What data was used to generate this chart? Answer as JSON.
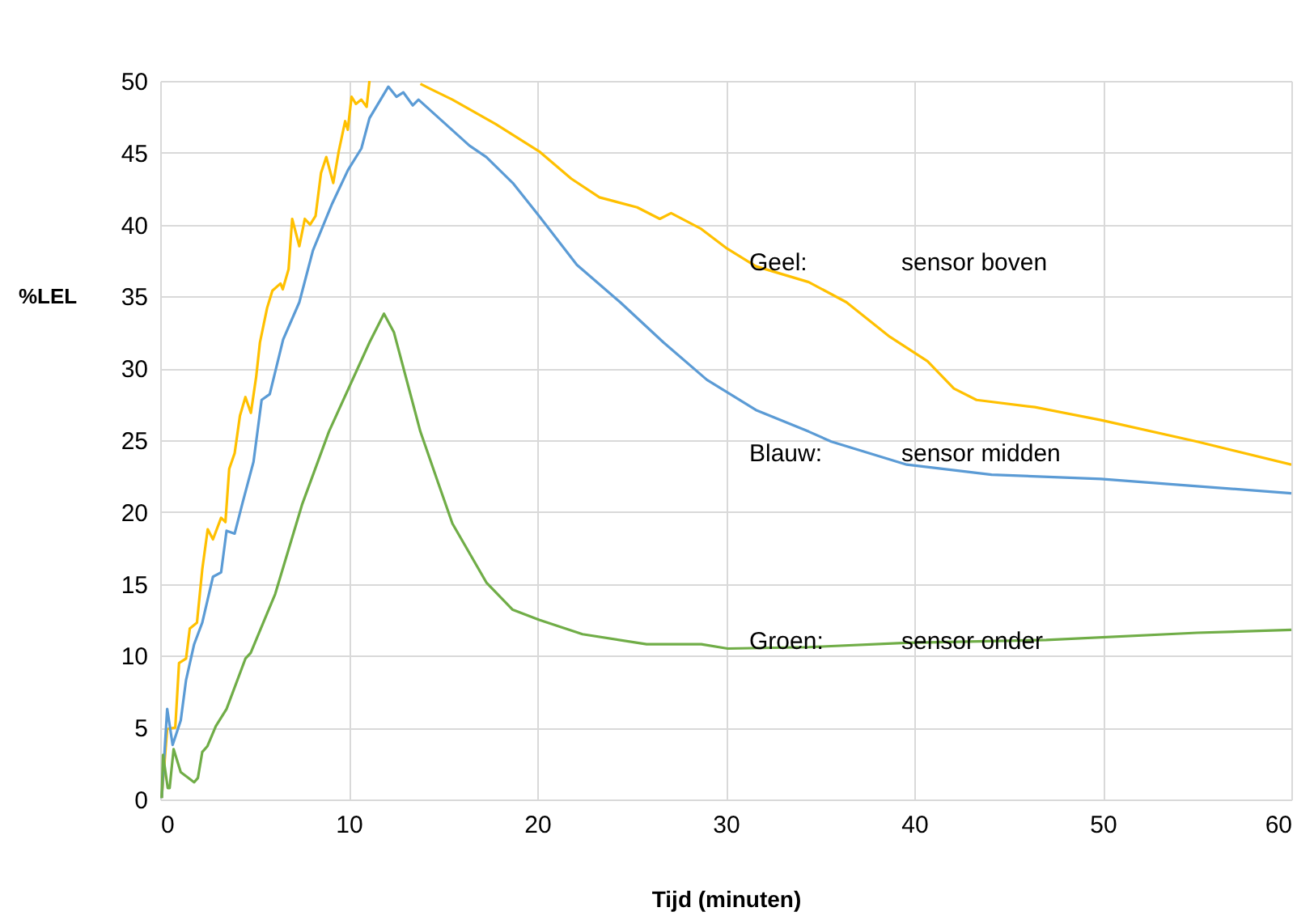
{
  "chart_data": {
    "type": "line",
    "xlabel": "Tijd (minuten)",
    "ylabel": "%LEL",
    "xlim": [
      0,
      60
    ],
    "xticks": [
      0,
      10,
      20,
      30,
      40,
      50,
      60
    ],
    "ylim": [
      0,
      50
    ],
    "yticks": [
      0,
      5,
      10,
      15,
      20,
      25,
      30,
      35,
      40,
      45,
      50
    ],
    "grid": true,
    "marker": "none",
    "line_style": "solid",
    "series": [
      {
        "color": "#ffc000",
        "x": [
          0.08,
          0.37,
          0.8,
          1.0,
          1.37,
          1.57,
          1.95,
          2.23,
          2.52,
          2.8,
          3.23,
          3.46,
          3.66,
          3.95,
          4.23,
          4.52,
          4.81,
          5.09,
          5.29,
          5.67,
          5.95,
          6.38,
          6.5,
          6.81,
          7.0,
          7.38,
          7.67,
          7.95,
          8.24,
          8.53,
          8.81,
          9.18,
          9.47,
          9.81,
          9.95,
          10.15,
          10.38,
          10.67,
          10.95,
          11.1,
          12.5,
          13.8,
          14.4,
          15.5,
          17.8,
          20.1,
          21.8,
          23.3,
          25.3,
          26.5,
          27.1,
          28.7,
          30.0,
          31.6,
          34.4,
          36.4,
          38.7,
          40.7,
          42.1,
          43.3,
          46.4,
          49.9,
          55.0,
          60.0
        ],
        "values": [
          0.1,
          4.9,
          5.0,
          9.5,
          9.8,
          11.9,
          12.3,
          16.0,
          18.8,
          18.1,
          19.6,
          19.3,
          23.0,
          24.1,
          26.7,
          28.0,
          26.9,
          29.4,
          31.8,
          34.2,
          35.4,
          35.9,
          35.5,
          36.9,
          40.4,
          38.5,
          40.4,
          40.0,
          40.6,
          43.6,
          44.7,
          42.9,
          45.1,
          47.2,
          46.6,
          48.9,
          48.4,
          48.7,
          48.2,
          50,
          null,
          49.8,
          49.4,
          48.7,
          47.0,
          45.1,
          43.2,
          41.9,
          41.2,
          40.4,
          40.8,
          39.7,
          38.4,
          37.1,
          36.0,
          34.6,
          32.2,
          30.5,
          28.6,
          27.8,
          27.3,
          26.4,
          24.9,
          23.3
        ]
      },
      {
        "color": "#5b9bd5",
        "x": [
          0.08,
          0.37,
          0.66,
          1.09,
          1.37,
          1.8,
          2.23,
          2.8,
          3.23,
          3.52,
          3.95,
          4.38,
          4.95,
          5.38,
          5.81,
          6.52,
          7.38,
          8.1,
          9.1,
          9.96,
          10.67,
          11.1,
          12.1,
          12.53,
          12.9,
          13.4,
          13.7,
          16.4,
          17.3,
          18.7,
          20.1,
          22.1,
          24.4,
          26.7,
          29.0,
          31.6,
          34.4,
          35.6,
          39.6,
          44.1,
          49.9,
          55.0,
          60.0
        ],
        "values": [
          0.1,
          6.3,
          3.8,
          5.5,
          8.3,
          10.8,
          12.3,
          15.5,
          15.8,
          18.7,
          18.5,
          20.7,
          23.5,
          27.8,
          28.2,
          32.0,
          34.6,
          38.2,
          41.4,
          43.8,
          45.3,
          47.4,
          49.6,
          48.9,
          49.2,
          48.3,
          48.7,
          45.5,
          44.7,
          42.9,
          40.6,
          37.2,
          34.6,
          31.8,
          29.2,
          27.1,
          25.6,
          24.9,
          23.3,
          22.6,
          22.3,
          21.8,
          21.3
        ]
      },
      {
        "color": "#70ad47",
        "x": [
          0.08,
          0.15,
          0.4,
          0.5,
          0.71,
          1.09,
          1.8,
          2.0,
          2.23,
          2.5,
          2.95,
          3.52,
          4.52,
          4.8,
          6.1,
          7.52,
          8.95,
          11.1,
          11.87,
          12.4,
          13.8,
          14.7,
          15.5,
          17.3,
          18.7,
          20.1,
          22.4,
          25.8,
          28.7,
          30.1,
          34.4,
          39.6,
          47.0,
          55.0,
          60.0
        ],
        "values": [
          0.1,
          3.1,
          0.8,
          0.8,
          3.5,
          1.9,
          1.2,
          1.5,
          3.3,
          3.7,
          5.1,
          6.3,
          9.8,
          10.2,
          14.3,
          20.5,
          25.6,
          31.8,
          33.8,
          32.5,
          25.6,
          22.2,
          19.2,
          15.1,
          13.2,
          12.5,
          11.5,
          10.8,
          10.8,
          10.5,
          10.6,
          10.9,
          11.1,
          11.6,
          11.8
        ]
      }
    ],
    "annotations": [
      "Geel:",
      "sensor boven",
      "Blauw:",
      "sensor midden",
      "Groen:",
      "sensor onder"
    ]
  }
}
